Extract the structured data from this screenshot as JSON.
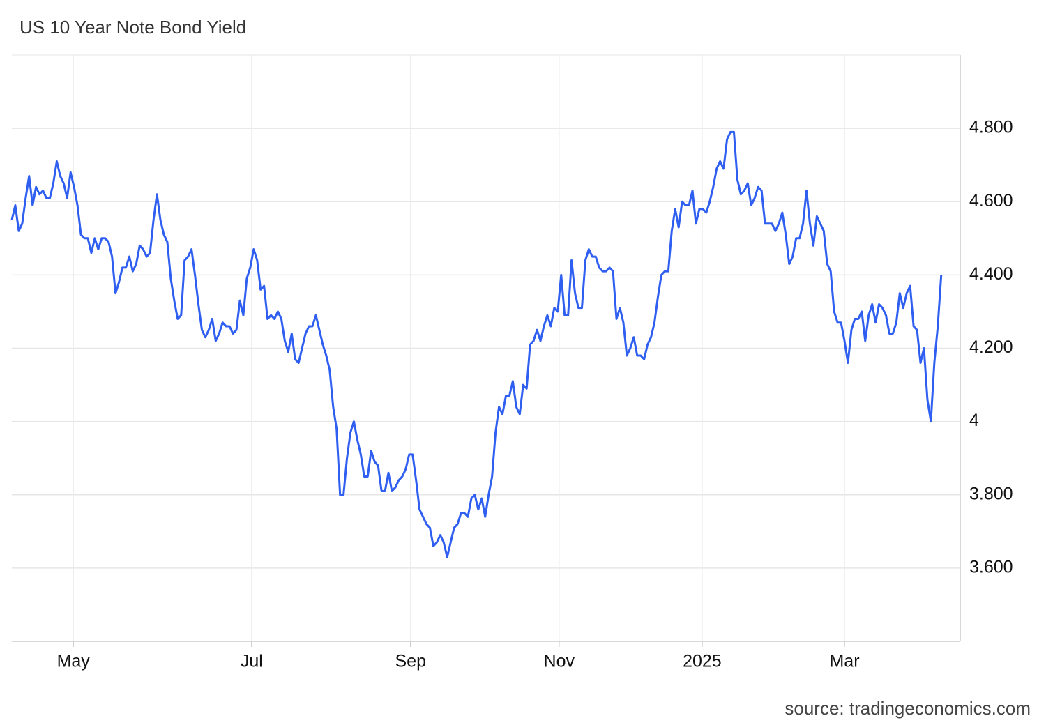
{
  "chart_data": {
    "type": "line",
    "title": "US 10 Year Note Bond Yield",
    "source": "source: tradingeconomics.com",
    "series": [
      {
        "name": "US 10 Year Note Bond Yield",
        "color": "#2f5ff0",
        "values": [
          4.55,
          4.59,
          4.52,
          4.54,
          4.61,
          4.67,
          4.59,
          4.64,
          4.62,
          4.63,
          4.61,
          4.61,
          4.65,
          4.71,
          4.67,
          4.65,
          4.61,
          4.68,
          4.64,
          4.59,
          4.51,
          4.5,
          4.5,
          4.46,
          4.5,
          4.47,
          4.5,
          4.5,
          4.49,
          4.45,
          4.35,
          4.38,
          4.42,
          4.42,
          4.45,
          4.41,
          4.43,
          4.48,
          4.47,
          4.45,
          4.46,
          4.55,
          4.62,
          4.55,
          4.51,
          4.49,
          4.39,
          4.33,
          4.28,
          4.29,
          4.44,
          4.45,
          4.47,
          4.4,
          4.32,
          4.25,
          4.23,
          4.25,
          4.28,
          4.22,
          4.24,
          4.27,
          4.26,
          4.26,
          4.24,
          4.25,
          4.33,
          4.29,
          4.39,
          4.42,
          4.47,
          4.44,
          4.36,
          4.37,
          4.28,
          4.29,
          4.28,
          4.3,
          4.28,
          4.22,
          4.19,
          4.24,
          4.17,
          4.16,
          4.2,
          4.24,
          4.26,
          4.26,
          4.29,
          4.25,
          4.21,
          4.18,
          4.14,
          4.04,
          3.98,
          3.8,
          3.8,
          3.9,
          3.97,
          4.0,
          3.95,
          3.91,
          3.85,
          3.85,
          3.92,
          3.89,
          3.88,
          3.81,
          3.81,
          3.86,
          3.81,
          3.82,
          3.84,
          3.85,
          3.87,
          3.91,
          3.91,
          3.84,
          3.76,
          3.74,
          3.72,
          3.71,
          3.66,
          3.67,
          3.69,
          3.67,
          3.63,
          3.67,
          3.71,
          3.72,
          3.75,
          3.75,
          3.74,
          3.79,
          3.8,
          3.76,
          3.79,
          3.74,
          3.8,
          3.85,
          3.97,
          4.04,
          4.02,
          4.07,
          4.07,
          4.11,
          4.04,
          4.02,
          4.1,
          4.09,
          4.21,
          4.22,
          4.25,
          4.22,
          4.26,
          4.29,
          4.26,
          4.31,
          4.3,
          4.4,
          4.29,
          4.29,
          4.44,
          4.35,
          4.31,
          4.31,
          4.44,
          4.47,
          4.45,
          4.45,
          4.42,
          4.41,
          4.41,
          4.42,
          4.41,
          4.28,
          4.31,
          4.27,
          4.18,
          4.2,
          4.23,
          4.18,
          4.18,
          4.17,
          4.21,
          4.23,
          4.27,
          4.34,
          4.4,
          4.41,
          4.41,
          4.52,
          4.58,
          4.53,
          4.6,
          4.59,
          4.59,
          4.63,
          4.54,
          4.58,
          4.58,
          4.57,
          4.6,
          4.64,
          4.69,
          4.71,
          4.69,
          4.77,
          4.79,
          4.79,
          4.66,
          4.62,
          4.63,
          4.65,
          4.59,
          4.61,
          4.64,
          4.63,
          4.54,
          4.54,
          4.54,
          4.52,
          4.54,
          4.57,
          4.51,
          4.43,
          4.45,
          4.5,
          4.5,
          4.54,
          4.63,
          4.54,
          4.48,
          4.56,
          4.54,
          4.52,
          4.43,
          4.41,
          4.3,
          4.27,
          4.27,
          4.22,
          4.16,
          4.25,
          4.28,
          4.28,
          4.3,
          4.22,
          4.29,
          4.32,
          4.27,
          4.32,
          4.31,
          4.29,
          4.24,
          4.24,
          4.27,
          4.35,
          4.31,
          4.35,
          4.37,
          4.26,
          4.25,
          4.16,
          4.2,
          4.06,
          4.0,
          4.16,
          4.26,
          4.4
        ]
      }
    ],
    "xlim": [
      0,
      274.5
    ],
    "xticks": [
      {
        "value": 17.8,
        "label": "May"
      },
      {
        "value": 69.4,
        "label": "Jul"
      },
      {
        "value": 115.4,
        "label": "Sep"
      },
      {
        "value": 158.4,
        "label": "Nov"
      },
      {
        "value": 199.8,
        "label": "2025"
      },
      {
        "value": 241.0,
        "label": "Mar"
      }
    ],
    "ylim": [
      3.4,
      5.0
    ],
    "yticks": [
      {
        "value": 3.6,
        "label": "3.600"
      },
      {
        "value": 3.8,
        "label": "3.800"
      },
      4,
      {
        "value": 4.2,
        "label": "4.200"
      },
      {
        "value": 4.4,
        "label": "4.400"
      },
      {
        "value": 4.6,
        "label": "4.600"
      },
      {
        "value": 4.8,
        "label": "4.800"
      }
    ],
    "grid": true
  }
}
